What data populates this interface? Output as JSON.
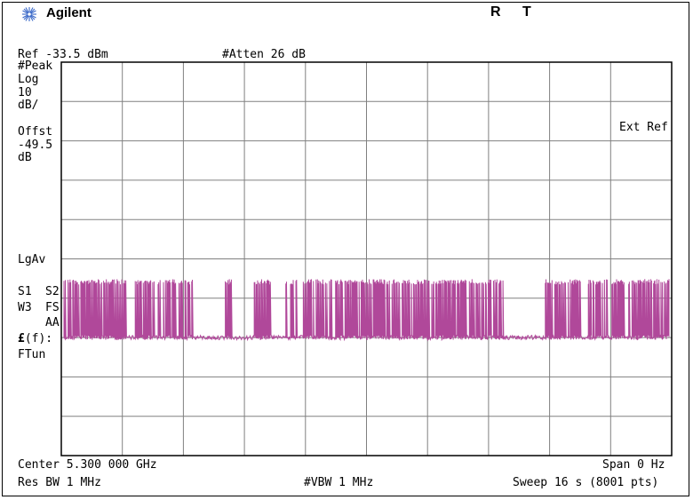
{
  "brand": "Agilent",
  "status": {
    "r": "R",
    "t": "T"
  },
  "header": {
    "ref_level": "Ref -33.5 dBm",
    "attenuation": "#Atten 26 dB"
  },
  "side_labels": {
    "detector": "#Peak",
    "scale_type": "Log",
    "scale_value": "10",
    "scale_unit": "dB/",
    "offset_label": "Offst",
    "offset_value": "-49.5",
    "offset_unit": "dB",
    "averaging": "LgAv",
    "s1": "S1",
    "s2": "S2",
    "w3": "W3",
    "fs": "FS",
    "aa": "AA",
    "ff_symbol": "£",
    "ff_text": "(f):",
    "ftun": "FTun"
  },
  "ext_ref": "Ext Ref",
  "footer": {
    "center": "Center 5.300 000 GHz",
    "span": "Span 0 Hz",
    "res_bw": "Res BW 1 MHz",
    "vbw": "#VBW 1 MHz",
    "sweep": "Sweep 16 s (8001 pts)"
  },
  "colors": {
    "trace": "#b0489a",
    "grid": "#808080",
    "border": "#000000"
  },
  "chart_data": {
    "type": "line",
    "xlabel": "",
    "ylabel": "",
    "ylim": [
      -133.5,
      -33.5
    ],
    "y_divisions": 10,
    "x_divisions": 10,
    "grid": true,
    "trace_description_values": {
      "noise_floor_dbm": -103.5,
      "pulse_top_dbm": -90.0
    }
  }
}
